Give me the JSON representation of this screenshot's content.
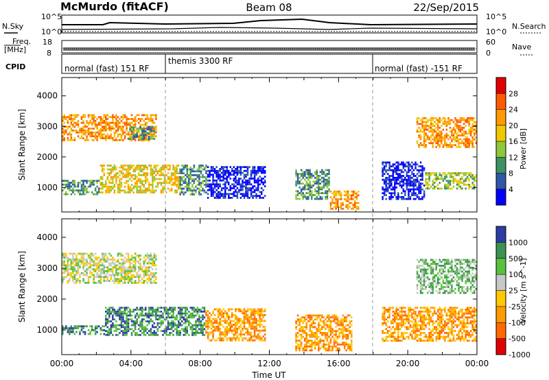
{
  "header": {
    "station": "McMurdo (fitACF)",
    "beam": "Beam 08",
    "date": "22/Sep/2015"
  },
  "info_panels": {
    "nsky_label": "N.Sky",
    "nsky_ticks": [
      "10^5",
      "10^0"
    ],
    "nsearch_label": "N.Search",
    "nsearch_ticks": [
      "10^5",
      "10^0"
    ],
    "freq_label_1": "Freq.",
    "freq_label_2": "[MHz]",
    "freq_ticks": [
      "18",
      "8"
    ],
    "nave_label": "Nave",
    "nave_ticks": [
      "60",
      "0"
    ],
    "cpid_label": "CPID",
    "cpid_segments": [
      {
        "label": "normal (fast) 151 RF",
        "start_hour": 0,
        "end_hour": 6.1
      },
      {
        "label": "themis 3300 RF",
        "start_hour": 6.1,
        "end_hour": 18.0
      },
      {
        "label": "normal (fast) -151 RF",
        "start_hour": 18.0,
        "end_hour": 24
      }
    ]
  },
  "chart_data": [
    {
      "type": "heatmap",
      "quantity": "Power",
      "xlabel": "",
      "ylabel": "Slant Range [km]",
      "xlim": [
        0,
        24
      ],
      "ylim": [
        200,
        4600
      ],
      "yticks": [
        1000,
        2000,
        3000,
        4000
      ],
      "colorbar": {
        "label": "Power [dB]",
        "ticks": [
          "28",
          "24",
          "20",
          "16",
          "12",
          "8",
          "4"
        ],
        "colors": [
          "#e00000",
          "#ff5a00",
          "#ff9a00",
          "#f0c800",
          "#8fc63a",
          "#3e9160",
          "#2f57a8",
          "#0000ff"
        ]
      },
      "regions": [
        {
          "x": [
            0,
            2.2
          ],
          "y": [
            750,
            1250
          ],
          "level": 5
        },
        {
          "x": [
            2.2,
            6.8
          ],
          "y": [
            800,
            1750
          ],
          "level": 3
        },
        {
          "x": [
            6.8,
            8.4
          ],
          "y": [
            750,
            1750
          ],
          "level": 5
        },
        {
          "x": [
            8.4,
            11.8
          ],
          "y": [
            650,
            1700
          ],
          "level": 7
        },
        {
          "x": [
            13.5,
            15.5
          ],
          "y": [
            600,
            1600
          ],
          "level": 5
        },
        {
          "x": [
            15.5,
            17.2
          ],
          "y": [
            300,
            900
          ],
          "level": 2
        },
        {
          "x": [
            18.5,
            21
          ],
          "y": [
            600,
            1850
          ],
          "level": 7
        },
        {
          "x": [
            21,
            24
          ],
          "y": [
            950,
            1500
          ],
          "level": 4
        },
        {
          "x": [
            0,
            5.5
          ],
          "y": [
            2500,
            3400
          ],
          "level": 2
        },
        {
          "x": [
            3.8,
            5.4
          ],
          "y": [
            2550,
            3000
          ],
          "level": 5
        },
        {
          "x": [
            20.5,
            24
          ],
          "y": [
            2300,
            3300
          ],
          "level": 2
        }
      ]
    },
    {
      "type": "heatmap",
      "quantity": "Velocity",
      "xlabel": "Time UT",
      "ylabel": "Slant Range [km]",
      "xlim": [
        0,
        24
      ],
      "ylim": [
        200,
        4600
      ],
      "yticks": [
        1000,
        2000,
        3000,
        4000
      ],
      "xticks": [
        "00:00",
        "04:00",
        "08:00",
        "12:00",
        "16:00",
        "20:00",
        "00:00"
      ],
      "colorbar": {
        "label": "Velocity [m s^-1]",
        "ticks": [
          "1000",
          "500",
          "100",
          "25",
          "-25",
          "-100",
          "-500",
          "-1000"
        ],
        "colors": [
          "#2e3ba5",
          "#3c9252",
          "#59c23d",
          "#c8c8c8",
          "#ffc800",
          "#ff9a00",
          "#ff6a00",
          "#e00000"
        ]
      },
      "regions": [
        {
          "x": [
            0,
            2.5
          ],
          "y": [
            850,
            1150
          ],
          "level": 1
        },
        {
          "x": [
            2.5,
            8.3
          ],
          "y": [
            800,
            1750
          ],
          "level": 1
        },
        {
          "x": [
            8.3,
            11.8
          ],
          "y": [
            650,
            1700
          ],
          "level": 5
        },
        {
          "x": [
            13.5,
            16.8
          ],
          "y": [
            300,
            1500
          ],
          "level": 5
        },
        {
          "x": [
            18.5,
            24
          ],
          "y": [
            600,
            1750
          ],
          "level": 5
        },
        {
          "x": [
            0,
            5.5
          ],
          "y": [
            2500,
            3500
          ],
          "level": 3
        },
        {
          "x": [
            20.5,
            24
          ],
          "y": [
            2200,
            3300
          ],
          "level": 2
        }
      ]
    }
  ]
}
